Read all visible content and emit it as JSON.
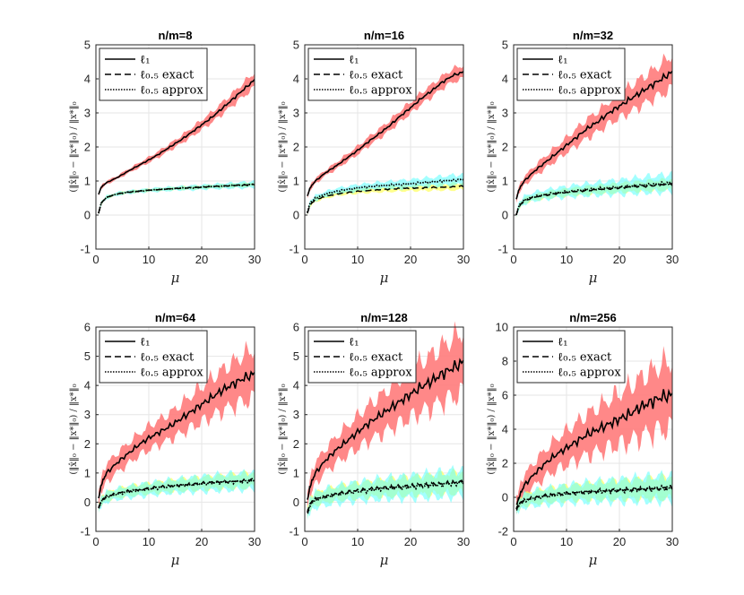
{
  "chart_data": {
    "type": "line",
    "layout": "2x3 grid",
    "shared_xlabel": "μ",
    "shared_ylabel": "(‖x̂‖₀ − ‖x*‖₀) / ‖x*‖₀",
    "xlim": [
      0,
      30
    ],
    "xticks": [
      0,
      10,
      20,
      30
    ],
    "legend_location": "top-left",
    "legend": [
      "ℓ₁",
      "ℓ₀.₅ exact",
      "ℓ₀.₅ approx"
    ],
    "series_styles": [
      {
        "name": "ℓ1",
        "line": "solid",
        "band_color": "#ff7b7b"
      },
      {
        "name": "ℓ0.5 exact",
        "line": "dashed",
        "band_color": "#ffff66"
      },
      {
        "name": "ℓ0.5 approx",
        "line": "dotted",
        "band_color": "#66ffff"
      }
    ],
    "x": [
      0.5,
      1,
      2,
      4,
      6,
      8,
      10,
      12,
      14,
      16,
      18,
      20,
      22,
      24,
      26,
      28,
      30
    ],
    "panels": [
      {
        "title": "n/m=8",
        "ylim": [
          -1,
          5
        ],
        "yticks": [
          -1,
          0,
          1,
          2,
          3,
          4,
          5
        ],
        "l1": {
          "mean": [
            0.6,
            0.82,
            0.95,
            1.1,
            1.28,
            1.45,
            1.62,
            1.8,
            2.0,
            2.2,
            2.42,
            2.65,
            2.88,
            3.15,
            3.42,
            3.7,
            3.97
          ],
          "spread": [
            0.03,
            0.05,
            0.05,
            0.05,
            0.06,
            0.07,
            0.08,
            0.09,
            0.1,
            0.11,
            0.13,
            0.14,
            0.15,
            0.17,
            0.18,
            0.2,
            0.22
          ]
        },
        "exact": {
          "mean": [
            0.05,
            0.35,
            0.52,
            0.62,
            0.67,
            0.7,
            0.73,
            0.75,
            0.77,
            0.79,
            0.8,
            0.82,
            0.84,
            0.85,
            0.87,
            0.88,
            0.9
          ],
          "spread": [
            0.03,
            0.04,
            0.04,
            0.04,
            0.04,
            0.04,
            0.04,
            0.04,
            0.04,
            0.05,
            0.05,
            0.05,
            0.05,
            0.05,
            0.05,
            0.06,
            0.06
          ]
        },
        "approx": {
          "mean": [
            0.05,
            0.35,
            0.52,
            0.62,
            0.67,
            0.7,
            0.73,
            0.75,
            0.77,
            0.79,
            0.8,
            0.82,
            0.84,
            0.85,
            0.87,
            0.88,
            0.9
          ],
          "spread": [
            0.04,
            0.05,
            0.05,
            0.05,
            0.05,
            0.05,
            0.05,
            0.06,
            0.06,
            0.06,
            0.07,
            0.07,
            0.07,
            0.08,
            0.08,
            0.09,
            0.1
          ]
        }
      },
      {
        "title": "n/m=16",
        "ylim": [
          -1,
          5
        ],
        "yticks": [
          -1,
          0,
          1,
          2,
          3,
          4,
          5
        ],
        "l1": {
          "mean": [
            0.55,
            0.8,
            1.0,
            1.25,
            1.45,
            1.68,
            1.9,
            2.15,
            2.38,
            2.62,
            2.9,
            3.15,
            3.42,
            3.65,
            3.9,
            4.1,
            4.2
          ],
          "spread": [
            0.05,
            0.07,
            0.08,
            0.08,
            0.1,
            0.11,
            0.12,
            0.13,
            0.14,
            0.15,
            0.16,
            0.17,
            0.17,
            0.18,
            0.18,
            0.19,
            0.2
          ]
        },
        "exact": {
          "mean": [
            0.05,
            0.3,
            0.45,
            0.55,
            0.62,
            0.66,
            0.7,
            0.72,
            0.74,
            0.76,
            0.78,
            0.79,
            0.8,
            0.81,
            0.82,
            0.83,
            0.85
          ],
          "spread": [
            0.04,
            0.05,
            0.06,
            0.06,
            0.06,
            0.06,
            0.07,
            0.07,
            0.07,
            0.08,
            0.08,
            0.08,
            0.09,
            0.09,
            0.09,
            0.1,
            0.1
          ]
        },
        "approx": {
          "mean": [
            0.08,
            0.35,
            0.5,
            0.62,
            0.7,
            0.75,
            0.8,
            0.83,
            0.86,
            0.88,
            0.9,
            0.92,
            0.95,
            0.97,
            1.0,
            1.02,
            1.05
          ],
          "spread": [
            0.06,
            0.07,
            0.08,
            0.08,
            0.09,
            0.09,
            0.1,
            0.1,
            0.11,
            0.11,
            0.12,
            0.12,
            0.13,
            0.13,
            0.14,
            0.15,
            0.15
          ]
        }
      },
      {
        "title": "n/m=32",
        "ylim": [
          -1,
          5
        ],
        "yticks": [
          -1,
          0,
          1,
          2,
          3,
          4,
          5
        ],
        "l1": {
          "mean": [
            0.45,
            0.75,
            1.0,
            1.3,
            1.55,
            1.8,
            2.05,
            2.3,
            2.55,
            2.75,
            3.0,
            3.2,
            3.4,
            3.6,
            3.8,
            4.0,
            4.2
          ],
          "spread": [
            0.08,
            0.1,
            0.12,
            0.15,
            0.18,
            0.2,
            0.22,
            0.25,
            0.28,
            0.3,
            0.32,
            0.35,
            0.38,
            0.4,
            0.42,
            0.45,
            0.5
          ]
        },
        "exact": {
          "mean": [
            0.0,
            0.25,
            0.42,
            0.52,
            0.58,
            0.63,
            0.66,
            0.7,
            0.72,
            0.75,
            0.77,
            0.8,
            0.82,
            0.84,
            0.86,
            0.88,
            0.9
          ],
          "spread": [
            0.06,
            0.07,
            0.08,
            0.09,
            0.1,
            0.1,
            0.11,
            0.11,
            0.12,
            0.12,
            0.13,
            0.13,
            0.14,
            0.14,
            0.15,
            0.15,
            0.16
          ]
        },
        "approx": {
          "mean": [
            0.0,
            0.27,
            0.44,
            0.55,
            0.6,
            0.65,
            0.68,
            0.72,
            0.75,
            0.77,
            0.8,
            0.82,
            0.85,
            0.87,
            0.9,
            0.92,
            0.95
          ],
          "spread": [
            0.08,
            0.1,
            0.12,
            0.13,
            0.14,
            0.15,
            0.16,
            0.17,
            0.18,
            0.19,
            0.2,
            0.21,
            0.22,
            0.23,
            0.24,
            0.25,
            0.27
          ]
        }
      },
      {
        "title": "n/m=64",
        "ylim": [
          -1,
          6
        ],
        "yticks": [
          -1,
          0,
          1,
          2,
          3,
          4,
          5,
          6
        ],
        "l1": {
          "mean": [
            0.1,
            0.6,
            1.0,
            1.35,
            1.65,
            1.95,
            2.2,
            2.4,
            2.6,
            2.85,
            3.1,
            3.35,
            3.6,
            3.85,
            4.05,
            4.25,
            4.4
          ],
          "spread": [
            0.2,
            0.25,
            0.3,
            0.33,
            0.35,
            0.37,
            0.4,
            0.42,
            0.45,
            0.5,
            0.55,
            0.6,
            0.65,
            0.7,
            0.75,
            0.8,
            0.85
          ]
        },
        "exact": {
          "mean": [
            -0.2,
            0.05,
            0.2,
            0.3,
            0.38,
            0.43,
            0.48,
            0.52,
            0.56,
            0.59,
            0.62,
            0.65,
            0.68,
            0.7,
            0.72,
            0.74,
            0.78
          ],
          "spread": [
            0.12,
            0.14,
            0.15,
            0.16,
            0.17,
            0.18,
            0.18,
            0.19,
            0.2,
            0.2,
            0.21,
            0.22,
            0.22,
            0.23,
            0.24,
            0.25,
            0.25
          ]
        },
        "approx": {
          "mean": [
            -0.22,
            0.02,
            0.18,
            0.28,
            0.35,
            0.4,
            0.45,
            0.5,
            0.54,
            0.57,
            0.6,
            0.63,
            0.66,
            0.68,
            0.7,
            0.72,
            0.74
          ],
          "spread": [
            0.15,
            0.17,
            0.18,
            0.19,
            0.2,
            0.21,
            0.22,
            0.22,
            0.23,
            0.24,
            0.25,
            0.26,
            0.27,
            0.28,
            0.28,
            0.29,
            0.3
          ]
        }
      },
      {
        "title": "n/m=128",
        "ylim": [
          -1,
          6
        ],
        "yticks": [
          -1,
          0,
          1,
          2,
          3,
          4,
          5,
          6
        ],
        "l1": {
          "mean": [
            0.05,
            0.55,
            1.0,
            1.45,
            1.8,
            2.1,
            2.4,
            2.7,
            2.95,
            3.2,
            3.45,
            3.7,
            3.95,
            4.15,
            4.4,
            4.6,
            4.8
          ],
          "spread": [
            0.2,
            0.3,
            0.35,
            0.4,
            0.45,
            0.5,
            0.55,
            0.6,
            0.65,
            0.7,
            0.75,
            0.8,
            0.85,
            0.9,
            0.95,
            1.0,
            1.05
          ]
        },
        "exact": {
          "mean": [
            -0.35,
            -0.05,
            0.12,
            0.22,
            0.3,
            0.36,
            0.4,
            0.44,
            0.48,
            0.5,
            0.53,
            0.56,
            0.58,
            0.6,
            0.63,
            0.66,
            0.7
          ],
          "spread": [
            0.18,
            0.2,
            0.22,
            0.23,
            0.24,
            0.25,
            0.26,
            0.27,
            0.28,
            0.29,
            0.3,
            0.31,
            0.32,
            0.33,
            0.34,
            0.35,
            0.36
          ]
        },
        "approx": {
          "mean": [
            -0.4,
            -0.1,
            0.08,
            0.18,
            0.26,
            0.32,
            0.37,
            0.41,
            0.45,
            0.48,
            0.5,
            0.53,
            0.56,
            0.58,
            0.61,
            0.64,
            0.68
          ],
          "spread": [
            0.22,
            0.25,
            0.27,
            0.28,
            0.3,
            0.31,
            0.32,
            0.33,
            0.35,
            0.36,
            0.37,
            0.38,
            0.4,
            0.41,
            0.42,
            0.44,
            0.45
          ]
        }
      },
      {
        "title": "n/m=256",
        "ylim": [
          -2,
          10
        ],
        "yticks": [
          -2,
          0,
          2,
          4,
          6,
          8,
          10
        ],
        "l1": {
          "mean": [
            -0.5,
            0.0,
            0.7,
            1.4,
            2.0,
            2.5,
            2.9,
            3.3,
            3.7,
            4.0,
            4.3,
            4.6,
            4.9,
            5.3,
            5.6,
            5.9,
            6.0
          ],
          "spread": [
            0.4,
            0.5,
            0.6,
            0.7,
            0.8,
            0.9,
            1.0,
            1.1,
            1.2,
            1.3,
            1.4,
            1.5,
            1.6,
            1.7,
            1.8,
            1.9,
            2.0
          ]
        },
        "exact": {
          "mean": [
            -0.7,
            -0.4,
            -0.15,
            0.0,
            0.1,
            0.18,
            0.25,
            0.3,
            0.35,
            0.38,
            0.42,
            0.45,
            0.48,
            0.5,
            0.52,
            0.55,
            0.6
          ],
          "spread": [
            0.25,
            0.3,
            0.35,
            0.38,
            0.4,
            0.42,
            0.44,
            0.46,
            0.48,
            0.5,
            0.52,
            0.54,
            0.56,
            0.58,
            0.6,
            0.62,
            0.65
          ]
        },
        "approx": {
          "mean": [
            -0.75,
            -0.45,
            -0.2,
            -0.05,
            0.05,
            0.13,
            0.2,
            0.26,
            0.3,
            0.34,
            0.38,
            0.41,
            0.44,
            0.47,
            0.5,
            0.52,
            0.55
          ],
          "spread": [
            0.3,
            0.35,
            0.4,
            0.45,
            0.48,
            0.5,
            0.52,
            0.55,
            0.58,
            0.6,
            0.62,
            0.65,
            0.68,
            0.7,
            0.72,
            0.75,
            0.8
          ]
        }
      }
    ]
  }
}
